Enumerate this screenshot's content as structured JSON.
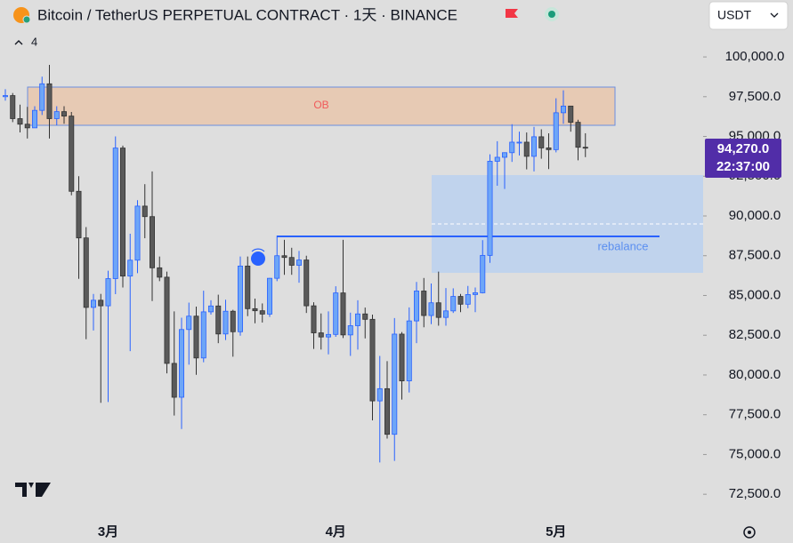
{
  "header": {
    "title": "Bitcoin / TetherUS PERPETUAL CONTRACT · 1天 · BINANCE",
    "indicator_count": "4",
    "currency": "USDT"
  },
  "chart_data": {
    "type": "candlestick",
    "categories": [
      null,
      null,
      null,
      null,
      null,
      null,
      null,
      null,
      null,
      null,
      null,
      null,
      null,
      null,
      "3月",
      null,
      null,
      null,
      null,
      null,
      null,
      null,
      null,
      null,
      null,
      null,
      null,
      null,
      null,
      null,
      null,
      null,
      null,
      null,
      null,
      null,
      null,
      null,
      null,
      null,
      null,
      null,
      null,
      null,
      null,
      "4月",
      null,
      null,
      null,
      null,
      null,
      null,
      null,
      null,
      null,
      null,
      null,
      null,
      null,
      null,
      null,
      null,
      null,
      null,
      null,
      null,
      null,
      null,
      null,
      null,
      null,
      null,
      null,
      null,
      null,
      "5月",
      null,
      null,
      null,
      null
    ],
    "open": [
      97500,
      97570,
      96120,
      95770,
      95540,
      96640,
      98310,
      96120,
      96560,
      96280,
      91550,
      88620,
      84250,
      84700,
      84350,
      86060,
      94270,
      86220,
      87220,
      90620,
      89960,
      86740,
      86150,
      80730,
      78600,
      82860,
      83700,
      81070,
      83970,
      84340,
      82580,
      84010,
      82720,
      86850,
      84170,
      84040,
      83830,
      86080,
      87500,
      87390,
      86900,
      87230,
      84350,
      82650,
      82390,
      82550,
      85160,
      82520,
      83100,
      83840,
      83500,
      78370,
      79140,
      76270,
      82570,
      79630,
      83400,
      85280,
      83740,
      84540,
      83620,
      84030,
      84940,
      84450,
      85060,
      85170,
      87520,
      93440,
      93690,
      93980,
      94640,
      94640,
      93750,
      94980,
      94280,
      94170,
      96490,
      96910,
      95890,
      94320
    ],
    "high": [
      97970,
      97730,
      97000,
      96860,
      96900,
      98760,
      99500,
      96900,
      96900,
      96540,
      92500,
      89300,
      85100,
      85100,
      86560,
      95000,
      94420,
      88880,
      90990,
      92000,
      92800,
      87450,
      86500,
      84000,
      83600,
      84550,
      84300,
      85300,
      84700,
      85050,
      84730,
      84100,
      87450,
      87450,
      84800,
      84500,
      86100,
      88760,
      88500,
      88000,
      87800,
      87500,
      84570,
      83870,
      84000,
      85580,
      88500,
      83920,
      84700,
      84240,
      83800,
      81200,
      80870,
      83580,
      82700,
      84250,
      85850,
      86100,
      85750,
      86500,
      85470,
      85450,
      85100,
      85600,
      85500,
      88480,
      93880,
      94700,
      94000,
      95770,
      95300,
      95250,
      95600,
      95450,
      95200,
      97400,
      97900,
      96900,
      96050,
      95200
    ],
    "low": [
      97250,
      95900,
      95250,
      94870,
      95540,
      96350,
      94870,
      95700,
      95800,
      91300,
      86050,
      82250,
      82800,
      78250,
      78300,
      85080,
      85500,
      81500,
      86400,
      88600,
      84650,
      85900,
      80100,
      77450,
      76600,
      80650,
      80010,
      80800,
      83800,
      82000,
      82200,
      81150,
      82470,
      83700,
      83250,
      83300,
      83650,
      85900,
      86300,
      86300,
      85800,
      83900,
      81640,
      81600,
      81300,
      82400,
      82320,
      81200,
      81600,
      82300,
      77150,
      74500,
      76000,
      74600,
      78450,
      78900,
      82000,
      83000,
      83200,
      83100,
      83100,
      83900,
      83950,
      84200,
      83950,
      85130,
      87050,
      91900,
      91700,
      93400,
      93800,
      92930,
      92800,
      93600,
      92950,
      94000,
      95800,
      95300,
      93500,
      93700
    ],
    "close": [
      97570,
      96120,
      95770,
      95540,
      96640,
      98310,
      96120,
      96560,
      96280,
      91550,
      88620,
      84250,
      84700,
      84350,
      86060,
      94270,
      86220,
      87220,
      90620,
      89960,
      86740,
      86150,
      80730,
      78600,
      82860,
      83700,
      81070,
      83970,
      84340,
      82580,
      84010,
      82720,
      86850,
      84170,
      84040,
      83830,
      86080,
      87500,
      87390,
      86900,
      87230,
      84350,
      82650,
      82390,
      82550,
      85160,
      82520,
      83100,
      83840,
      83500,
      78370,
      79140,
      76270,
      82570,
      79630,
      83400,
      85280,
      83740,
      84540,
      83620,
      84030,
      84940,
      84450,
      85060,
      85170,
      87520,
      93440,
      93690,
      93980,
      94640,
      94640,
      93750,
      94980,
      94280,
      94170,
      96490,
      96910,
      95890,
      94320,
      94270
    ],
    "up_color": "#6ea6f7",
    "down_color": "#5a5a5a",
    "ylim": [
      71000,
      103580
    ],
    "yticks": [
      {
        "value": 72500,
        "label": "72,500.0"
      },
      {
        "value": 75000,
        "label": "75,000.0"
      },
      {
        "value": 77500,
        "label": "77,500.0"
      },
      {
        "value": 80000,
        "label": "80,000.0"
      },
      {
        "value": 82500,
        "label": "82,500.0"
      },
      {
        "value": 85000,
        "label": "85,000.0"
      },
      {
        "value": 87500,
        "label": "87,500.0"
      },
      {
        "value": 90000,
        "label": "90,000.0"
      },
      {
        "value": 92500,
        "label": "92,500.0"
      },
      {
        "value": 95000,
        "label": "95,000.0"
      },
      {
        "value": 97500,
        "label": "97,500.0"
      },
      {
        "value": 100000,
        "label": "100,000.0"
      }
    ],
    "last_price_label": "94,270.0",
    "countdown": "22:37:00",
    "annotations": [
      "OB",
      "rebalance"
    ]
  }
}
